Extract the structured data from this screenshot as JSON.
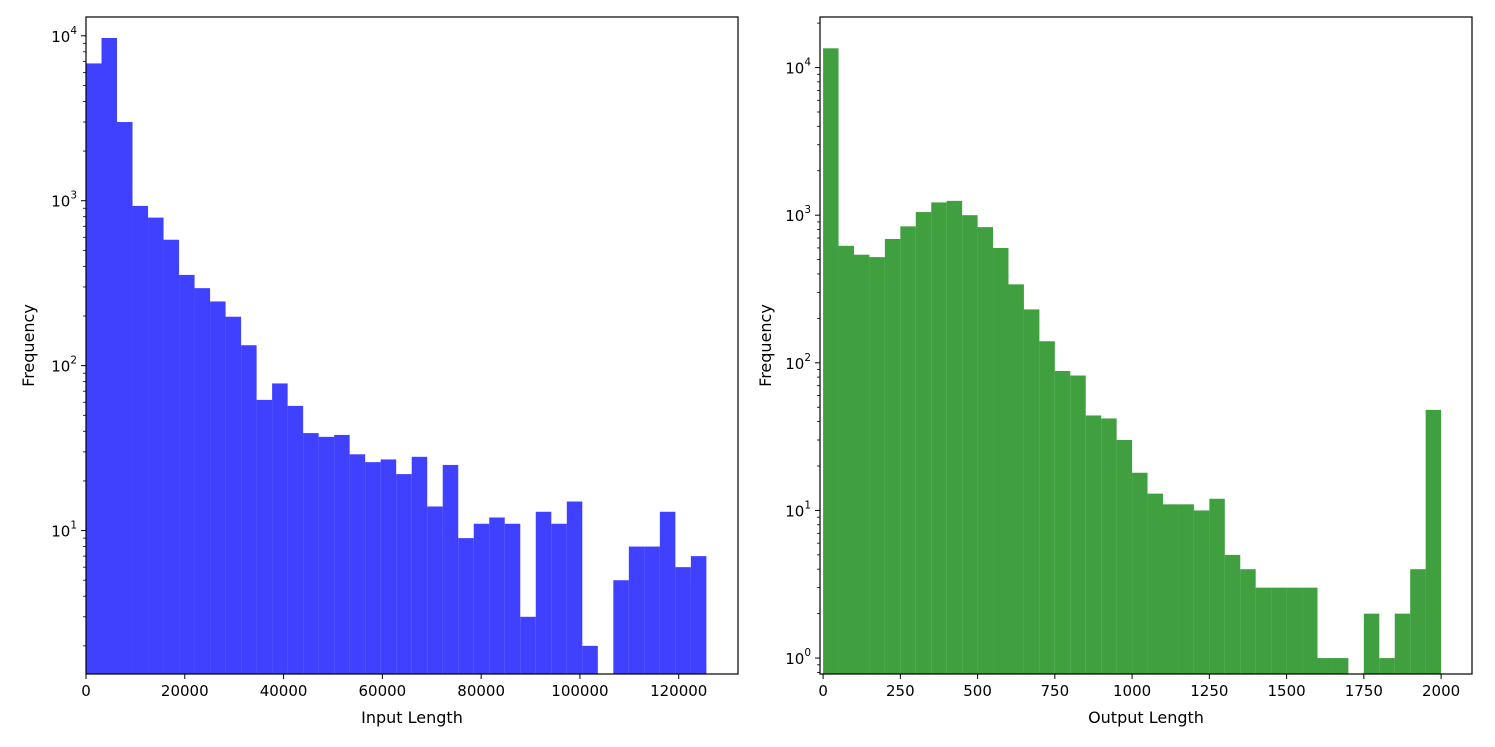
{
  "chart_data": [
    {
      "type": "bar",
      "histogram": true,
      "xlabel": "Input Length",
      "ylabel": "Frequency",
      "log_y": true,
      "xlim": [
        0,
        132000
      ],
      "ylim": [
        1.35,
        13000
      ],
      "bar_color": "#0000ff",
      "bar_alpha": 0.75,
      "bin_width": 3140,
      "bin_starts": [
        0,
        3140,
        6280,
        9420,
        12560,
        15700,
        18840,
        21980,
        25120,
        28260,
        31400,
        34540,
        37680,
        40820,
        43960,
        47100,
        50240,
        53380,
        56520,
        59660,
        62800,
        65940,
        69080,
        72220,
        75360,
        78500,
        81640,
        84780,
        87920,
        91060,
        94200,
        97340,
        100480,
        103620,
        106760,
        109900,
        113040,
        116180,
        119320,
        122460
      ],
      "values": [
        6800,
        9700,
        3000,
        930,
        790,
        580,
        355,
        295,
        245,
        198,
        133,
        62,
        78,
        57,
        39,
        37,
        38,
        29,
        26,
        27,
        22,
        28,
        14,
        25,
        9,
        11,
        12,
        11,
        3,
        13,
        11,
        15,
        2,
        0,
        5,
        8,
        8,
        13,
        6,
        7
      ],
      "x_ticks": [
        {
          "value": 0,
          "label": "0"
        },
        {
          "value": 20000,
          "label": "20000"
        },
        {
          "value": 40000,
          "label": "40000"
        },
        {
          "value": 60000,
          "label": "60000"
        },
        {
          "value": 80000,
          "label": "80000"
        },
        {
          "value": 100000,
          "label": "100000"
        },
        {
          "value": 120000,
          "label": "120000"
        }
      ],
      "y_ticks": [
        {
          "value": 10,
          "base": "10",
          "exp": "1"
        },
        {
          "value": 100,
          "base": "10",
          "exp": "2"
        },
        {
          "value": 1000,
          "base": "10",
          "exp": "3"
        },
        {
          "value": 10000,
          "base": "10",
          "exp": "4"
        }
      ],
      "grid": false,
      "legend": "none"
    },
    {
      "type": "bar",
      "histogram": true,
      "xlabel": "Output Length",
      "ylabel": "Frequency",
      "log_y": true,
      "xlim": [
        -10,
        2100
      ],
      "ylim": [
        0.78,
        22000
      ],
      "bar_color": "#008000",
      "bar_alpha": 0.75,
      "bin_width": 50,
      "bin_starts": [
        0,
        50,
        100,
        150,
        200,
        250,
        300,
        350,
        400,
        450,
        500,
        550,
        600,
        650,
        700,
        750,
        800,
        850,
        900,
        950,
        1000,
        1050,
        1100,
        1150,
        1200,
        1250,
        1300,
        1350,
        1400,
        1450,
        1500,
        1550,
        1600,
        1650,
        1700,
        1750,
        1800,
        1850,
        1900,
        1950
      ],
      "values": [
        13500,
        620,
        540,
        520,
        690,
        840,
        1050,
        1220,
        1250,
        1000,
        830,
        600,
        340,
        230,
        140,
        88,
        82,
        44,
        42,
        30,
        18,
        13,
        11,
        11,
        10,
        12,
        5,
        4,
        3,
        3,
        3,
        3,
        1,
        1,
        0,
        2,
        1,
        2,
        4,
        48
      ],
      "x_ticks": [
        {
          "value": 0,
          "label": "0"
        },
        {
          "value": 250,
          "label": "250"
        },
        {
          "value": 500,
          "label": "500"
        },
        {
          "value": 750,
          "label": "750"
        },
        {
          "value": 1000,
          "label": "1000"
        },
        {
          "value": 1250,
          "label": "1250"
        },
        {
          "value": 1500,
          "label": "1500"
        },
        {
          "value": 1750,
          "label": "1750"
        },
        {
          "value": 2000,
          "label": "2000"
        }
      ],
      "y_ticks": [
        {
          "value": 1,
          "base": "10",
          "exp": "0"
        },
        {
          "value": 10,
          "base": "10",
          "exp": "1"
        },
        {
          "value": 100,
          "base": "10",
          "exp": "2"
        },
        {
          "value": 1000,
          "base": "10",
          "exp": "3"
        },
        {
          "value": 10000,
          "base": "10",
          "exp": "4"
        }
      ],
      "grid": false,
      "legend": "none"
    }
  ]
}
